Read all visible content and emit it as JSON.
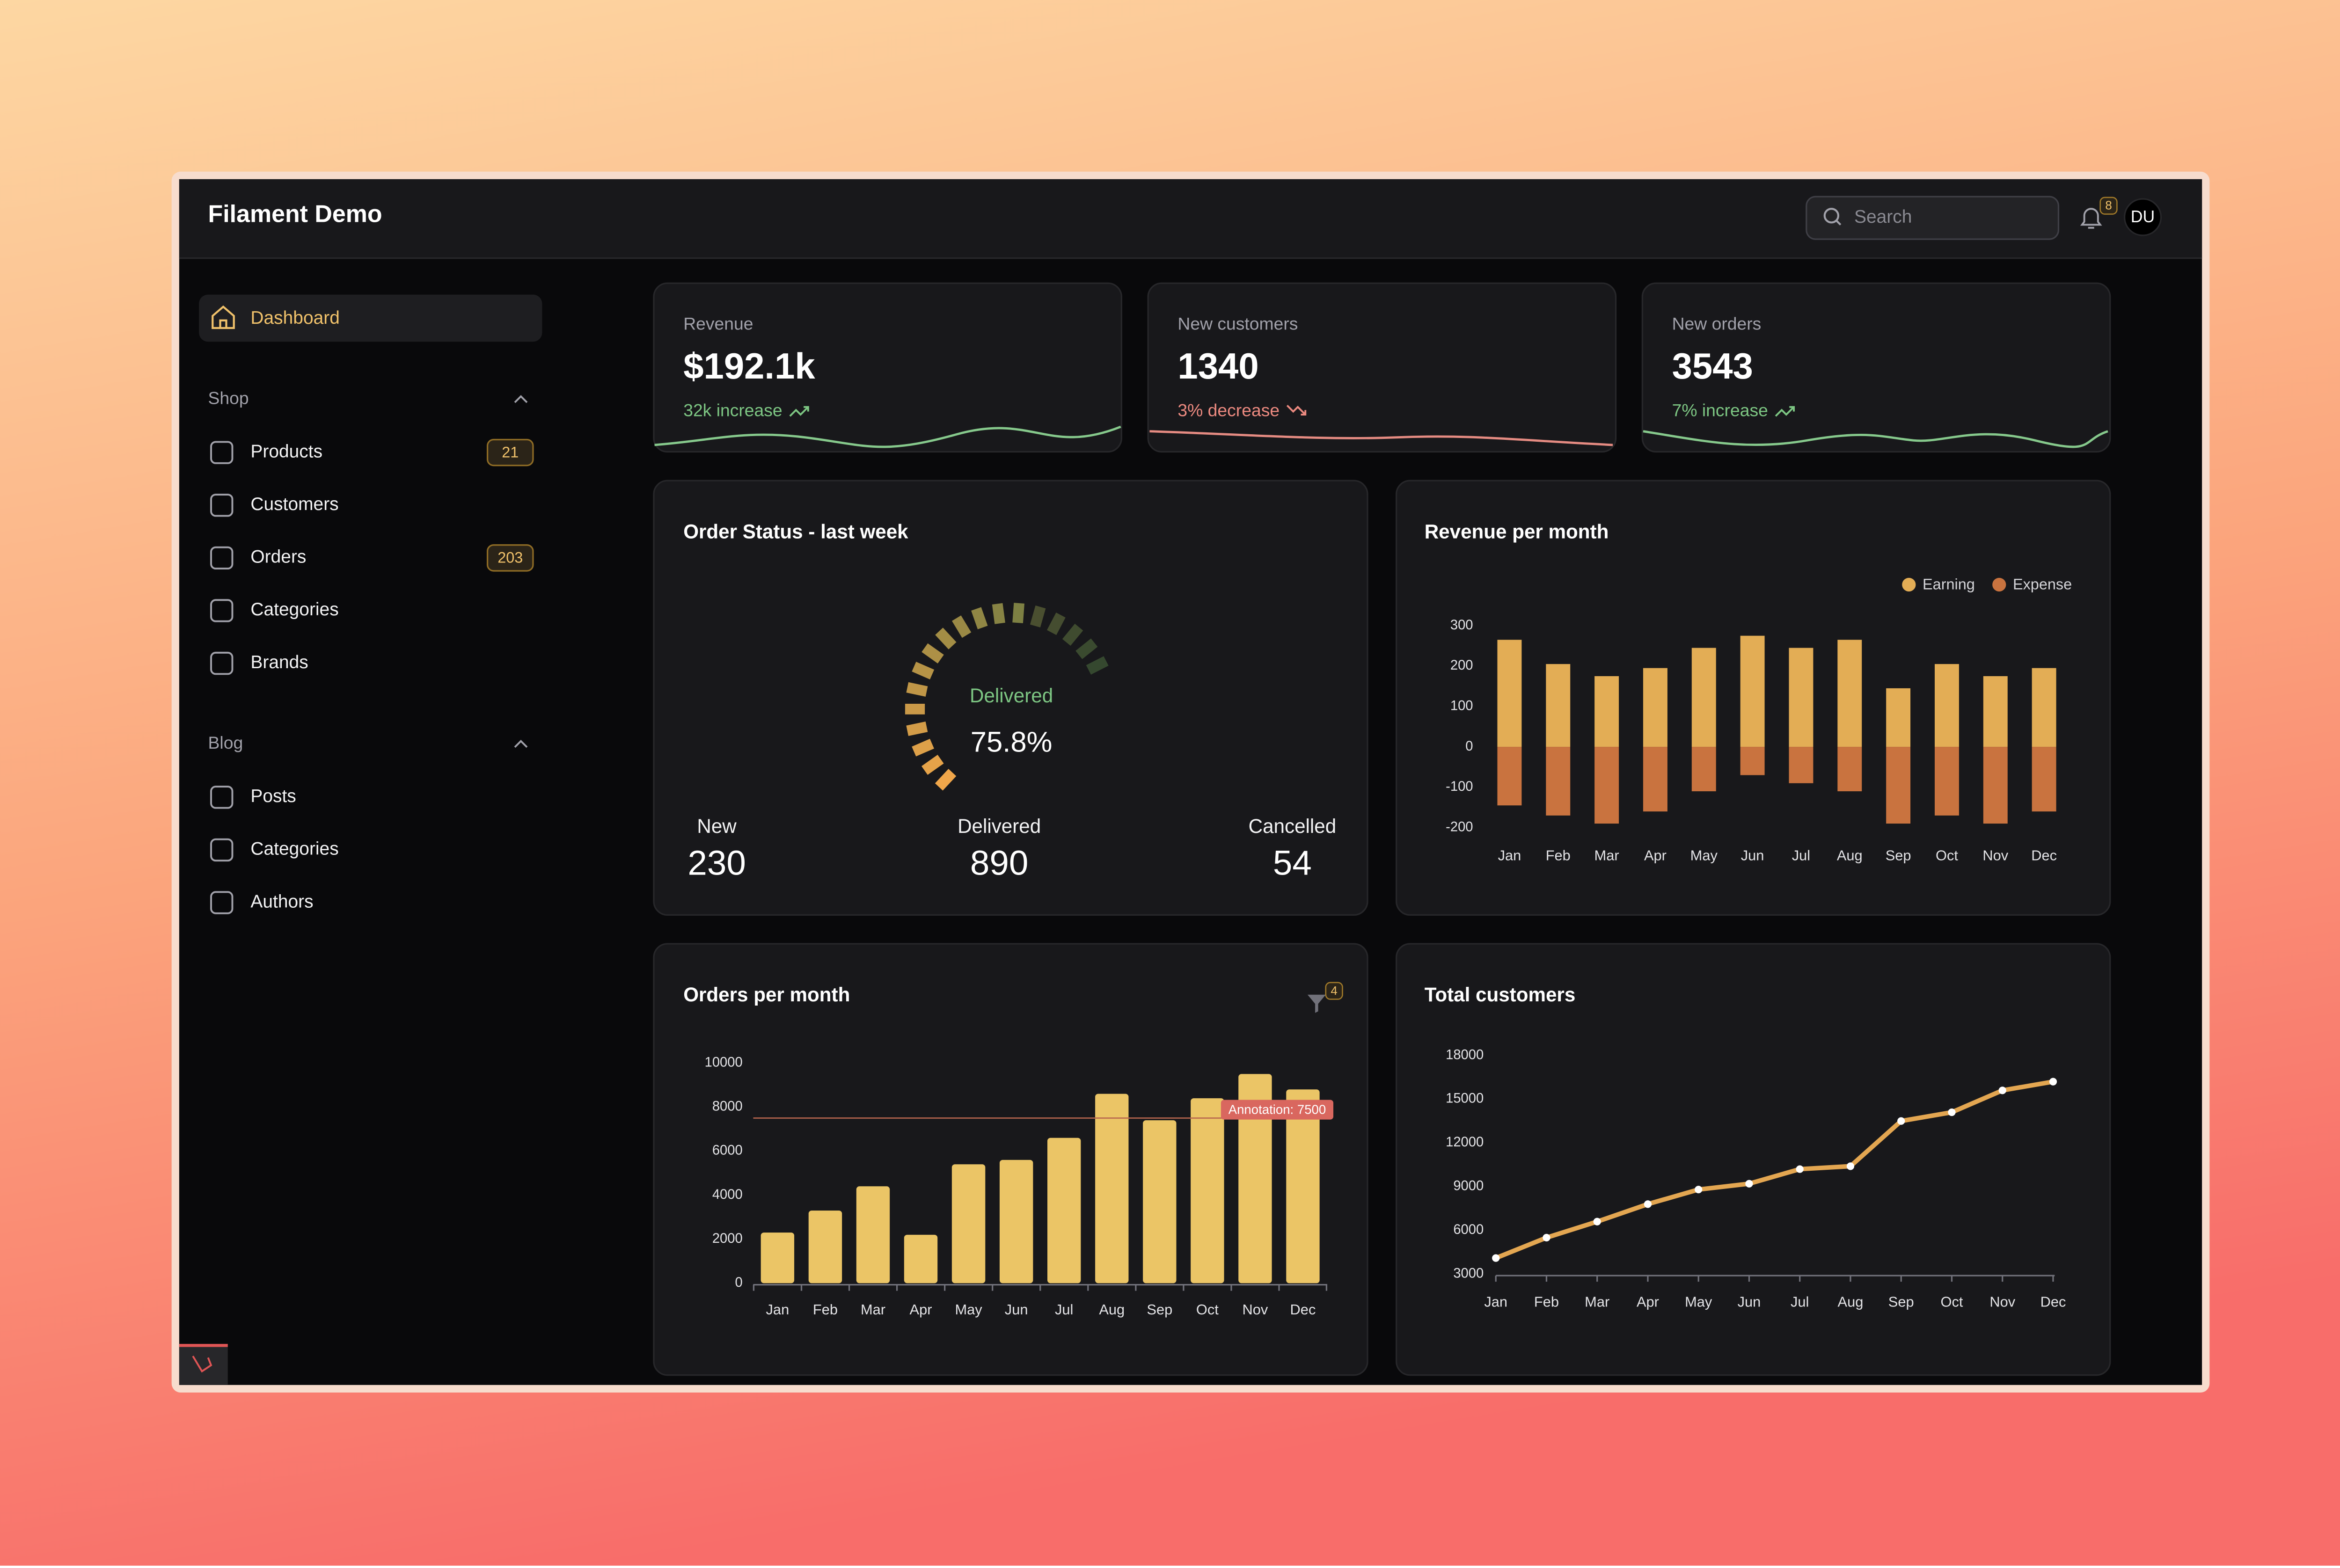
{
  "header": {
    "title": "Filament Demo",
    "search_placeholder": "Search",
    "notifications": 8,
    "avatar": "DU"
  },
  "sidebar": {
    "active": "Dashboard",
    "groups": [
      {
        "title": "Shop",
        "items": [
          {
            "label": "Products",
            "badge": 21
          },
          {
            "label": "Customers"
          },
          {
            "label": "Orders",
            "badge": 203
          },
          {
            "label": "Categories"
          },
          {
            "label": "Brands"
          }
        ]
      },
      {
        "title": "Blog",
        "items": [
          {
            "label": "Posts"
          },
          {
            "label": "Categories"
          },
          {
            "label": "Authors"
          }
        ]
      }
    ]
  },
  "stats": [
    {
      "label": "Revenue",
      "value": "$192.1k",
      "change": "32k increase",
      "trend": "up"
    },
    {
      "label": "New customers",
      "value": "1340",
      "change": "3% decrease",
      "trend": "down"
    },
    {
      "label": "New orders",
      "value": "3543",
      "change": "7% increase",
      "trend": "up"
    }
  ],
  "order_status": {
    "title": "Order Status - last week",
    "gauge": {
      "label": "Delivered",
      "value": 75.8,
      "value_label": "75.8%"
    },
    "counts": [
      {
        "label": "New",
        "value": 230
      },
      {
        "label": "Delivered",
        "value": 890
      },
      {
        "label": "Cancelled",
        "value": 54
      }
    ]
  },
  "revenue_chart": {
    "type": "bar",
    "stacked": true,
    "title": "Revenue per month",
    "categories": [
      "Jan",
      "Feb",
      "Mar",
      "Apr",
      "May",
      "Jun",
      "Jul",
      "Aug",
      "Sep",
      "Oct",
      "Nov",
      "Dec"
    ],
    "series": [
      {
        "name": "Earning",
        "color": "#e3ad55",
        "values": [
          265,
          205,
          175,
          195,
          245,
          275,
          245,
          265,
          145,
          205,
          175,
          195
        ]
      },
      {
        "name": "Expense",
        "color": "#c9733f",
        "values": [
          -145,
          -170,
          -190,
          -160,
          -110,
          -70,
          -90,
          -110,
          -190,
          -170,
          -190,
          -160
        ]
      }
    ],
    "ylim": [
      -200,
      300
    ],
    "yticks": [
      -200,
      -100,
      0,
      100,
      200,
      300
    ]
  },
  "orders_chart": {
    "type": "bar",
    "title": "Orders per month",
    "filter_count": 4,
    "categories": [
      "Jan",
      "Feb",
      "Mar",
      "Apr",
      "May",
      "Jun",
      "Jul",
      "Aug",
      "Sep",
      "Oct",
      "Nov",
      "Dec"
    ],
    "values": [
      2300,
      3300,
      4400,
      2200,
      5400,
      5600,
      6600,
      8600,
      7400,
      8400,
      9500,
      8800
    ],
    "color": "#ebc566",
    "ylim": [
      0,
      10000
    ],
    "yticks": [
      0,
      2000,
      4000,
      6000,
      8000,
      10000
    ],
    "annotation": {
      "value": 7500,
      "label": "Annotation: 7500"
    }
  },
  "customers_chart": {
    "type": "line",
    "title": "Total customers",
    "categories": [
      "Jan",
      "Feb",
      "Mar",
      "Apr",
      "May",
      "Jun",
      "Jul",
      "Aug",
      "Sep",
      "Oct",
      "Nov",
      "Dec"
    ],
    "values": [
      4100,
      5500,
      6600,
      7800,
      8800,
      9200,
      10200,
      10400,
      13500,
      14100,
      15600,
      16200
    ],
    "color": "#e3a651",
    "ylim": [
      3000,
      18000
    ],
    "yticks": [
      3000,
      6000,
      9000,
      12000,
      15000,
      18000
    ]
  }
}
